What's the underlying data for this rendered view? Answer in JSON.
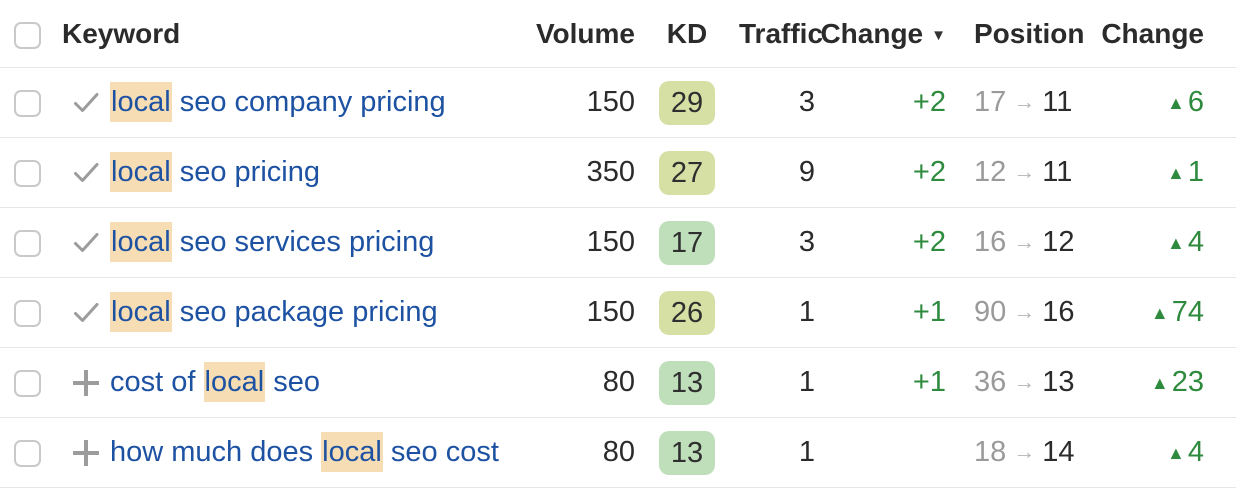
{
  "colors": {
    "link_blue": "#1d52a3",
    "highlight_bg": "#f7ddb4",
    "kd_yellow_green": "#d6e0a4",
    "kd_green": "#bfdfba",
    "positive_green": "#2e8a3d",
    "muted_gray": "#9a9a9a",
    "text_dark": "#2b2b2b"
  },
  "table": {
    "columns": {
      "keyword": "Keyword",
      "volume": "Volume",
      "kd": "KD",
      "traffic": "Traffic",
      "change": "Change",
      "position": "Position",
      "position_change": "Change"
    },
    "sort_arrow": "▼",
    "position_arrow": "→",
    "up_triangle": "▲",
    "rows": [
      {
        "added": true,
        "keyword_parts": [
          {
            "text": "local",
            "highlight": true
          },
          {
            "text": " seo company pricing",
            "highlight": false
          }
        ],
        "volume": "150",
        "kd": "29",
        "kd_color": "#d6e0a4",
        "traffic": "3",
        "change": "+2",
        "position_from": "17",
        "position_to": "11",
        "position_change": "6"
      },
      {
        "added": true,
        "keyword_parts": [
          {
            "text": "local",
            "highlight": true
          },
          {
            "text": " seo pricing",
            "highlight": false
          }
        ],
        "volume": "350",
        "kd": "27",
        "kd_color": "#d6e0a4",
        "traffic": "9",
        "change": "+2",
        "position_from": "12",
        "position_to": "11",
        "position_change": "1"
      },
      {
        "added": true,
        "keyword_parts": [
          {
            "text": "local",
            "highlight": true
          },
          {
            "text": " seo services pricing",
            "highlight": false
          }
        ],
        "volume": "150",
        "kd": "17",
        "kd_color": "#bfdfba",
        "traffic": "3",
        "change": "+2",
        "position_from": "16",
        "position_to": "12",
        "position_change": "4"
      },
      {
        "added": true,
        "keyword_parts": [
          {
            "text": "local",
            "highlight": true
          },
          {
            "text": " seo package pricing",
            "highlight": false
          }
        ],
        "volume": "150",
        "kd": "26",
        "kd_color": "#d6e0a4",
        "traffic": "1",
        "change": "+1",
        "position_from": "90",
        "position_to": "16",
        "position_change": "74"
      },
      {
        "added": false,
        "keyword_parts": [
          {
            "text": "cost of ",
            "highlight": false
          },
          {
            "text": "local",
            "highlight": true
          },
          {
            "text": " seo",
            "highlight": false
          }
        ],
        "volume": "80",
        "kd": "13",
        "kd_color": "#bfdfba",
        "traffic": "1",
        "change": "+1",
        "position_from": "36",
        "position_to": "13",
        "position_change": "23"
      },
      {
        "added": false,
        "keyword_parts": [
          {
            "text": "how much does ",
            "highlight": false
          },
          {
            "text": "local",
            "highlight": true
          },
          {
            "text": " seo cost",
            "highlight": false
          }
        ],
        "volume": "80",
        "kd": "13",
        "kd_color": "#bfdfba",
        "traffic": "1",
        "change": "",
        "position_from": "18",
        "position_to": "14",
        "position_change": "4"
      }
    ]
  }
}
